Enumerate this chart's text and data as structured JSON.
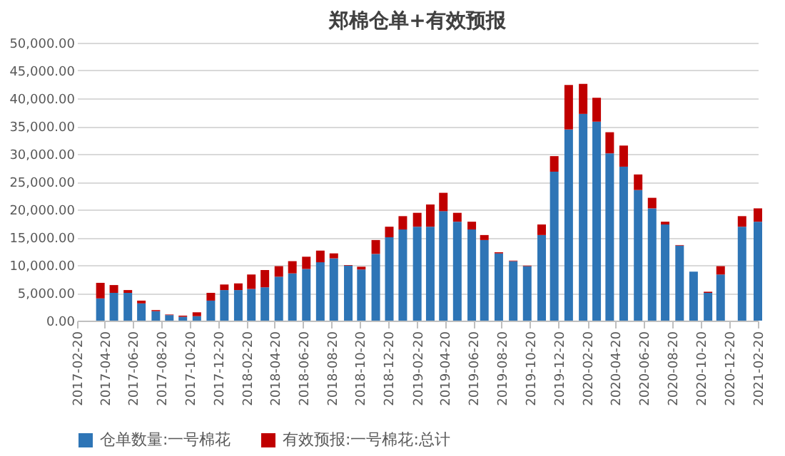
{
  "chart_data": {
    "type": "bar",
    "title": "郑棉仓单+有效预报",
    "stacked": true,
    "x": [
      "2017-04-11",
      "2017-05-10",
      "2017-06-09",
      "2017-07-08",
      "2017-08-08",
      "2017-09-06",
      "2017-10-05",
      "2017-11-04",
      "2017-12-04",
      "2018-01-02",
      "2018-02-01",
      "2018-03-01",
      "2018-03-30",
      "2018-04-29",
      "2018-05-28",
      "2018-06-27",
      "2018-07-27",
      "2018-08-25",
      "2018-09-25",
      "2018-10-23",
      "2018-11-23",
      "2018-12-22",
      "2019-01-20",
      "2019-02-20",
      "2019-03-20",
      "2019-04-17",
      "2019-05-17",
      "2019-06-17",
      "2019-07-14",
      "2019-08-14",
      "2019-09-14",
      "2019-10-14",
      "2019-11-14",
      "2019-12-11",
      "2020-01-11",
      "2020-02-11",
      "2020-03-11",
      "2020-04-08",
      "2020-05-08",
      "2020-06-08",
      "2020-07-08",
      "2020-08-05",
      "2020-09-05",
      "2020-10-05",
      "2020-11-05",
      "2020-12-02",
      "2021-01-17",
      "2021-02-20"
    ],
    "series": [
      {
        "name": "仓单数量:一号棉花",
        "color": "#2e75b6",
        "values": [
          4000,
          5000,
          5000,
          3100,
          1700,
          1000,
          700,
          800,
          3600,
          5500,
          5500,
          5700,
          6000,
          7900,
          8500,
          9300,
          10500,
          11200,
          9900,
          9200,
          12000,
          15000,
          16400,
          16900,
          16900,
          19700,
          17800,
          16400,
          14500,
          12100,
          10700,
          9800,
          15400,
          26800,
          34400,
          37200,
          35800,
          30100,
          27700,
          23500,
          20200,
          17300,
          13500,
          8800,
          5000,
          8300,
          16900,
          17800
        ]
      },
      {
        "name": "有效预报:一号棉花:总计",
        "color": "#c00000",
        "values": [
          2800,
          1400,
          500,
          500,
          200,
          100,
          200,
          700,
          1400,
          1000,
          1200,
          2600,
          3100,
          1900,
          2200,
          2200,
          2100,
          900,
          100,
          500,
          2500,
          1900,
          2400,
          2500,
          4000,
          3300,
          1600,
          1400,
          900,
          200,
          100,
          100,
          1900,
          2800,
          8000,
          5400,
          4300,
          3800,
          3800,
          2800,
          1900,
          500,
          100,
          0,
          200,
          1500,
          1900,
          2400
        ]
      }
    ],
    "xlim": [
      "2017-02-20",
      "2021-02-20"
    ],
    "xticks": [
      "2017-02-20",
      "2017-04-20",
      "2017-06-20",
      "2017-08-20",
      "2017-10-20",
      "2017-12-20",
      "2018-02-20",
      "2018-04-20",
      "2018-06-20",
      "2018-08-20",
      "2018-10-20",
      "2018-12-20",
      "2019-02-20",
      "2019-04-20",
      "2019-06-20",
      "2019-08-20",
      "2019-10-20",
      "2019-12-20",
      "2020-02-20",
      "2020-04-20",
      "2020-06-20",
      "2020-08-20",
      "2020-10-20",
      "2020-12-20",
      "2021-02-20"
    ],
    "ylim": [
      0,
      50000
    ],
    "yticks": [
      {
        "value": 0,
        "label": "0.00"
      },
      {
        "value": 5000,
        "label": "5,000.00"
      },
      {
        "value": 10000,
        "label": "10,000.00"
      },
      {
        "value": 15000,
        "label": "15,000.00"
      },
      {
        "value": 20000,
        "label": "20,000.00"
      },
      {
        "value": 25000,
        "label": "25,000.00"
      },
      {
        "value": 30000,
        "label": "30,000.00"
      },
      {
        "value": 35000,
        "label": "35,000.00"
      },
      {
        "value": 40000,
        "label": "40,000.00"
      },
      {
        "value": 45000,
        "label": "45,000.00"
      },
      {
        "value": 50000,
        "label": "50,000.00"
      }
    ],
    "grid": "y",
    "legend": "bottom"
  }
}
